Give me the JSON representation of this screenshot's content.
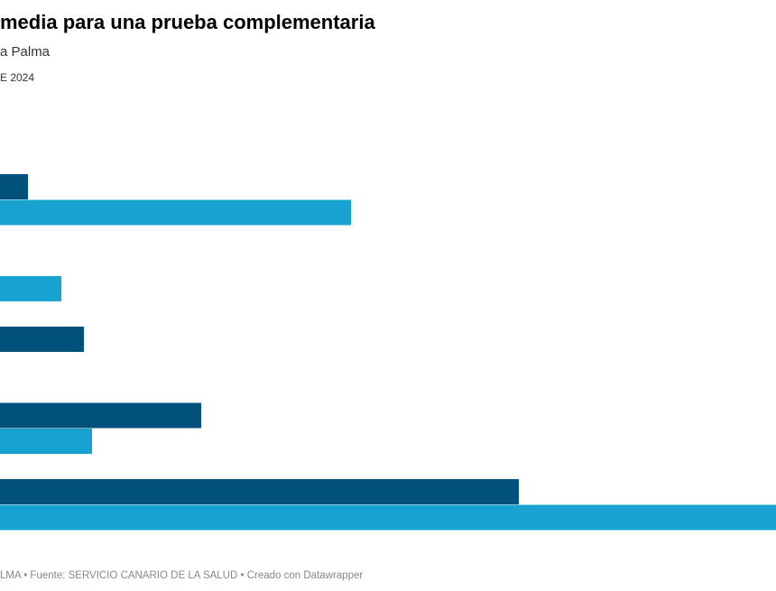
{
  "chart_data": {
    "type": "grouped-hbar",
    "title": "media para una prueba complementaria",
    "subtitle": "a Palma",
    "note": "E 2024",
    "footer": "LMA • Fuente: SERVICIO CANARIO DE LA SALUD • Creado con Datawrapper",
    "categories": [
      null,
      null,
      null,
      null,
      null
    ],
    "series": [
      {
        "color": "#00527d",
        "values": [
          31,
          null,
          93,
          223,
          575
        ]
      },
      {
        "color": "#17a2d1",
        "values": [
          389,
          68,
          null,
          102,
          860
        ]
      }
    ],
    "xlim": [
      0,
      860
    ]
  }
}
